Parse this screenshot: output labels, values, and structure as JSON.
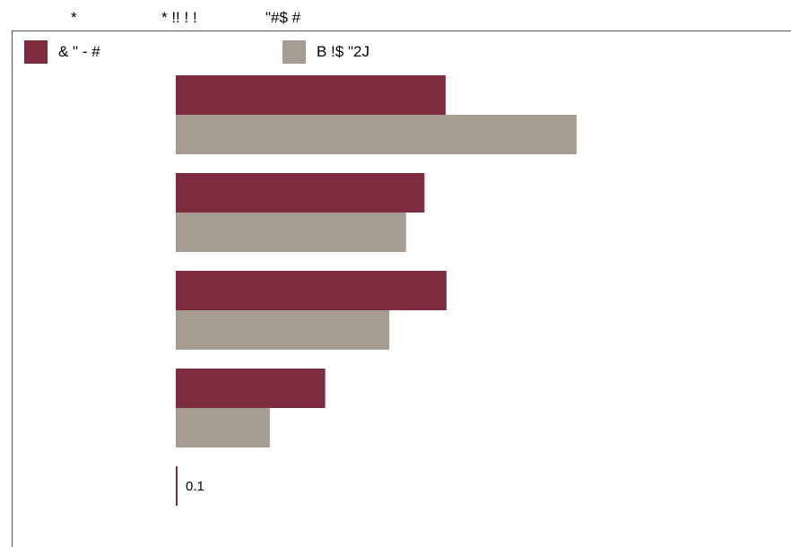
{
  "header": {
    "labels": [
      "*",
      "* !! ! !",
      "\"#$ #"
    ]
  },
  "legend": {
    "items": [
      {
        "label": "& \" - #",
        "color": "#7d2c40"
      },
      {
        "label": "B !$ \"2J",
        "color": "#a69c92"
      }
    ]
  },
  "chart_data": {
    "type": "bar",
    "orientation": "horizontal",
    "categories": [
      "",
      "",
      "",
      ""
    ],
    "series": [
      {
        "name": "& \" - #",
        "color": "#7d2c40",
        "values": [
          0.307,
          0.283,
          0.308,
          0.17
        ]
      },
      {
        "name": "B !$ \"2J",
        "color": "#a69c92",
        "values": [
          0.456,
          0.262,
          0.243,
          0.107
        ]
      }
    ],
    "tick_labels": [
      "0.1"
    ],
    "xlim": [
      0,
      0.7
    ],
    "grid": false,
    "legend_position": "top-left"
  }
}
